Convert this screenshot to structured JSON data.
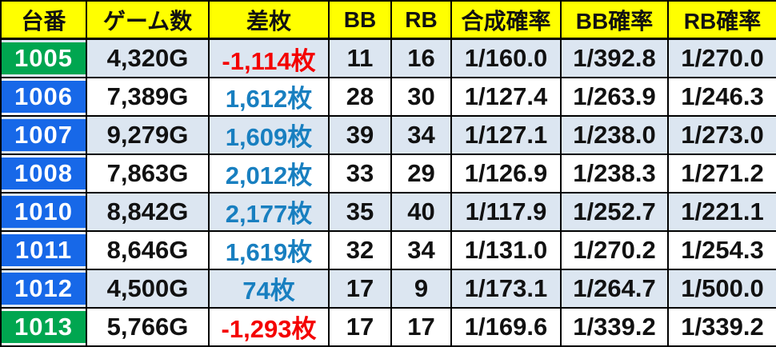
{
  "table": {
    "headers": [
      "台番",
      "ゲーム数",
      "差枚",
      "BB",
      "RB",
      "合成確率",
      "BB確率",
      "RB確率"
    ],
    "rows": [
      {
        "dai": "1005",
        "games": "4,320G",
        "diff": "-1,114枚",
        "bb": "11",
        "rb": "16",
        "combined": "1/160.0",
        "bb_rate": "1/392.8",
        "rb_rate": "1/270.0"
      },
      {
        "dai": "1006",
        "games": "7,389G",
        "diff": "1,612枚",
        "bb": "28",
        "rb": "30",
        "combined": "1/127.4",
        "bb_rate": "1/263.9",
        "rb_rate": "1/246.3"
      },
      {
        "dai": "1007",
        "games": "9,279G",
        "diff": "1,609枚",
        "bb": "39",
        "rb": "34",
        "combined": "1/127.1",
        "bb_rate": "1/238.0",
        "rb_rate": "1/273.0"
      },
      {
        "dai": "1008",
        "games": "7,863G",
        "diff": "2,012枚",
        "bb": "33",
        "rb": "29",
        "combined": "1/126.9",
        "bb_rate": "1/238.3",
        "rb_rate": "1/271.2"
      },
      {
        "dai": "1010",
        "games": "8,842G",
        "diff": "2,177枚",
        "bb": "35",
        "rb": "40",
        "combined": "1/117.9",
        "bb_rate": "1/252.7",
        "rb_rate": "1/221.1"
      },
      {
        "dai": "1011",
        "games": "8,646G",
        "diff": "1,619枚",
        "bb": "32",
        "rb": "34",
        "combined": "1/131.0",
        "bb_rate": "1/270.2",
        "rb_rate": "1/254.3"
      },
      {
        "dai": "1012",
        "games": "4,500G",
        "diff": "74枚",
        "bb": "17",
        "rb": "9",
        "combined": "1/173.1",
        "bb_rate": "1/264.7",
        "rb_rate": "1/500.0"
      },
      {
        "dai": "1013",
        "games": "5,766G",
        "diff": "-1,293枚",
        "bb": "17",
        "rb": "17",
        "combined": "1/169.6",
        "bb_rate": "1/339.2",
        "rb_rate": "1/339.2"
      }
    ]
  },
  "colors": {
    "header_bg": "#FFFF00",
    "header_text": "#111111",
    "machine_green": "#00A650",
    "machine_blue": "#1768E8",
    "row_alt_bg": "#DCE6F1",
    "row_bg": "#FFFFFF",
    "diff_negative": "#F40000",
    "diff_positive": "#187FC0",
    "grid": "#000000"
  },
  "chart_data": {
    "type": "table",
    "columns": [
      "台番",
      "ゲーム数",
      "差枚",
      "BB",
      "RB",
      "合成確率",
      "BB確率",
      "RB確率"
    ],
    "rows": [
      [
        "1005",
        "4,320G",
        "-1,114枚",
        "11",
        "16",
        "1/160.0",
        "1/392.8",
        "1/270.0"
      ],
      [
        "1006",
        "7,389G",
        "1,612枚",
        "28",
        "30",
        "1/127.4",
        "1/263.9",
        "1/246.3"
      ],
      [
        "1007",
        "9,279G",
        "1,609枚",
        "39",
        "34",
        "1/127.1",
        "1/238.0",
        "1/273.0"
      ],
      [
        "1008",
        "7,863G",
        "2,012枚",
        "33",
        "29",
        "1/126.9",
        "1/238.3",
        "1/271.2"
      ],
      [
        "1010",
        "8,842G",
        "2,177枚",
        "35",
        "40",
        "1/117.9",
        "1/252.7",
        "1/221.1"
      ],
      [
        "1011",
        "8,646G",
        "1,619枚",
        "32",
        "34",
        "1/131.0",
        "1/270.2",
        "1/254.3"
      ],
      [
        "1012",
        "4,500G",
        "74枚",
        "17",
        "9",
        "1/173.1",
        "1/264.7",
        "1/500.0"
      ],
      [
        "1013",
        "5,766G",
        "-1,293枚",
        "17",
        "17",
        "1/169.6",
        "1/339.2",
        "1/339.2"
      ]
    ]
  }
}
